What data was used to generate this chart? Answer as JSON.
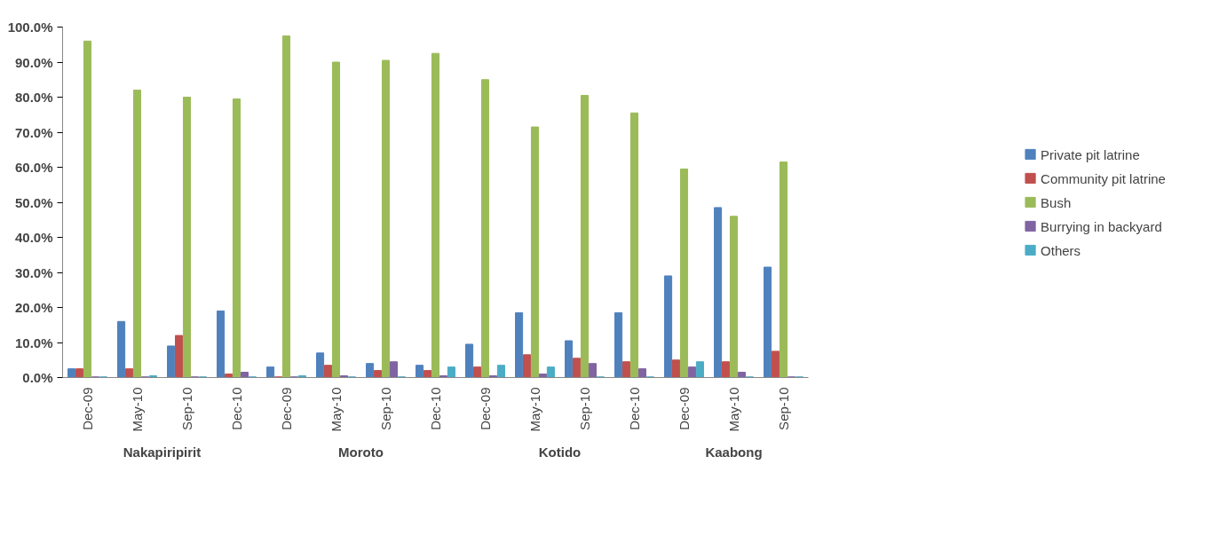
{
  "chart_data": {
    "type": "bar",
    "categories": [
      "Dec-09",
      "May-10",
      "Sep-10",
      "Dec-10",
      "Dec-09",
      "May-10",
      "Sep-10",
      "Dec-10",
      "Dec-09",
      "May-10",
      "Sep-10",
      "Dec-10",
      "Dec-09",
      "May-10",
      "Sep-10"
    ],
    "annotations": [
      "Nakapiripirit",
      "Moroto",
      "Kotido",
      "Kaabong"
    ],
    "series": [
      {
        "name": "Private pit latrine",
        "color": "#4f81bd",
        "values": [
          2.5,
          16,
          9,
          19,
          3,
          7,
          4,
          3.5,
          9.5,
          18.5,
          10.5,
          18.5,
          29,
          48.5,
          31.5
        ]
      },
      {
        "name": "Community pit latrine",
        "color": "#c0504d",
        "values": [
          2.5,
          2.5,
          12,
          1,
          0.2,
          3.5,
          2,
          2,
          3,
          6.5,
          5.5,
          4.5,
          5,
          4.5,
          7.5
        ]
      },
      {
        "name": "Bush",
        "color": "#9bbb59",
        "values": [
          96,
          82,
          80,
          79.5,
          97.5,
          90,
          90.5,
          92.5,
          85,
          71.5,
          80.5,
          75.5,
          59.5,
          46,
          61.5
        ]
      },
      {
        "name": "Burrying in backyard",
        "color": "#8064a2",
        "values": [
          0.2,
          0.2,
          0.2,
          1.5,
          0.2,
          0.5,
          4.5,
          0.5,
          0.5,
          1,
          4,
          2.5,
          3,
          1.5,
          0.2
        ]
      },
      {
        "name": "Others",
        "color": "#4bacc6",
        "values": [
          0.2,
          0.5,
          0.2,
          0.2,
          0.5,
          0.2,
          0.2,
          3,
          3.5,
          3,
          0.2,
          0.2,
          4.5,
          0.2,
          0.2
        ]
      }
    ],
    "ylim": [
      0,
      100
    ],
    "yticks": [
      {
        "value": 0,
        "label": "0.0%"
      },
      {
        "value": 10,
        "label": "10.0%"
      },
      {
        "value": 20,
        "label": "20.0%"
      },
      {
        "value": 30,
        "label": "30.0%"
      },
      {
        "value": 40,
        "label": "40.0%"
      },
      {
        "value": 50,
        "label": "50.0%"
      },
      {
        "value": 60,
        "label": "60.0%"
      },
      {
        "value": 70,
        "label": "70.0%"
      },
      {
        "value": 80,
        "label": "80.0%"
      },
      {
        "value": 90,
        "label": "90.0%"
      },
      {
        "value": 100,
        "label": "100.0%"
      }
    ],
    "grid": false,
    "legend": "right"
  }
}
